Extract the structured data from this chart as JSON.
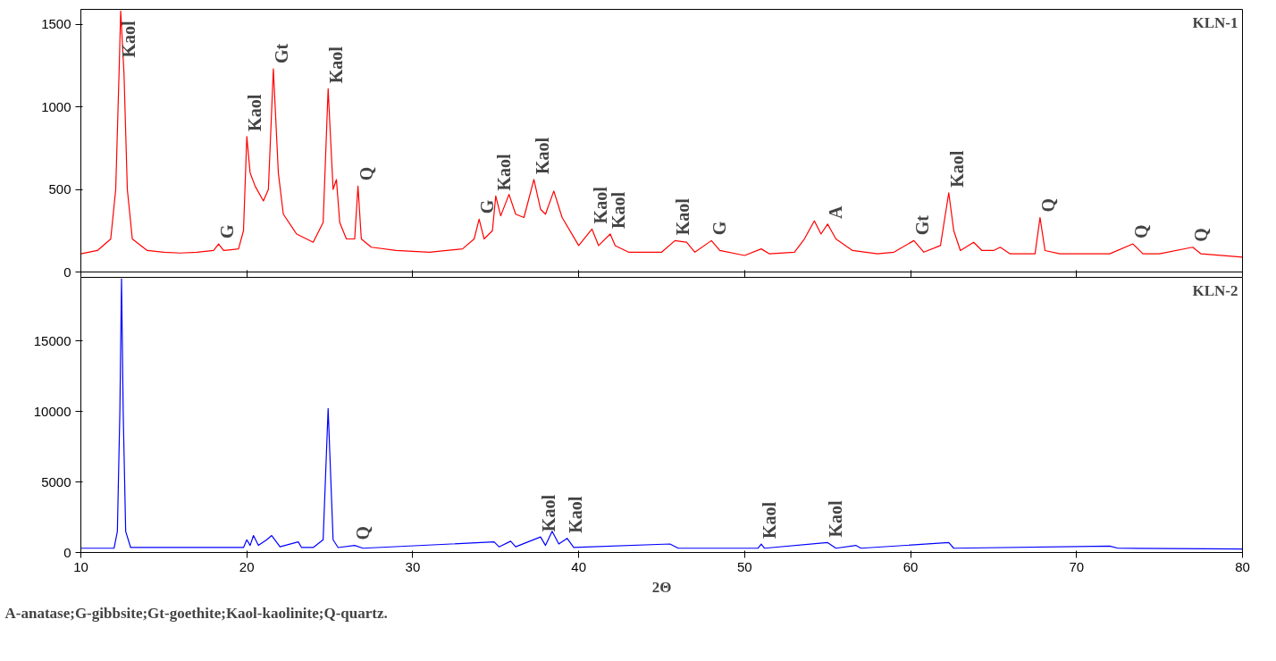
{
  "chart_data": [
    {
      "type": "line",
      "title": "KLN-1",
      "xlim": [
        10,
        80
      ],
      "xticks": [
        10,
        20,
        30,
        40,
        50,
        60,
        70,
        80
      ],
      "ylim": [
        0,
        1590
      ],
      "yticks": [
        0,
        500,
        1000,
        1500
      ],
      "tick_labels": "y",
      "grid": false,
      "series": [
        {
          "color": "#ff0000",
          "x": [
            10,
            11,
            11.8,
            12.1,
            12.3,
            12.4,
            12.6,
            12.8,
            13.1,
            14,
            15,
            16,
            17,
            18,
            18.3,
            18.6,
            19.5,
            19.8,
            20.0,
            20.2,
            20.5,
            21,
            21.3,
            21.6,
            21.9,
            22.2,
            23,
            24,
            24.6,
            24.9,
            25.2,
            25.4,
            25.6,
            26,
            26.5,
            26.7,
            26.9,
            27.5,
            29,
            31,
            33,
            33.7,
            34,
            34.3,
            34.8,
            35,
            35.3,
            35.8,
            36.2,
            36.7,
            37.3,
            37.7,
            38,
            38.5,
            39,
            40,
            40.8,
            41.2,
            41.9,
            42.2,
            43,
            45,
            45.8,
            46.5,
            47,
            48,
            48.5,
            50,
            51,
            51.5,
            53,
            53.6,
            54.2,
            54.6,
            55,
            55.5,
            56.5,
            58,
            59,
            60.2,
            60.8,
            61.8,
            62.3,
            62.6,
            63,
            63.8,
            64.3,
            65,
            65.4,
            66,
            67.5,
            67.8,
            68.1,
            69,
            72,
            73.4,
            74,
            75,
            77,
            77.5,
            80
          ],
          "values": [
            110,
            130,
            200,
            500,
            1200,
            1580,
            1200,
            500,
            200,
            130,
            120,
            115,
            120,
            130,
            170,
            130,
            140,
            250,
            820,
            600,
            520,
            430,
            500,
            1230,
            600,
            350,
            230,
            180,
            300,
            1110,
            500,
            560,
            300,
            200,
            200,
            520,
            200,
            150,
            130,
            120,
            140,
            200,
            320,
            200,
            250,
            460,
            340,
            470,
            350,
            330,
            560,
            380,
            350,
            490,
            330,
            160,
            260,
            160,
            230,
            160,
            120,
            120,
            190,
            180,
            120,
            190,
            130,
            100,
            140,
            110,
            120,
            200,
            310,
            230,
            290,
            200,
            130,
            110,
            120,
            190,
            120,
            160,
            480,
            250,
            130,
            180,
            130,
            130,
            150,
            110,
            110,
            330,
            130,
            110,
            110,
            170,
            110,
            110,
            150,
            110,
            90
          ]
        }
      ],
      "annotations": [
        {
          "text": "Kaol",
          "x": 12.4,
          "y": 1580
        },
        {
          "text": "G",
          "x": 18.3,
          "y": 170
        },
        {
          "text": "Kaol",
          "x": 20.0,
          "y": 820
        },
        {
          "text": "Gt",
          "x": 21.6,
          "y": 1230
        },
        {
          "text": "Kaol",
          "x": 24.9,
          "y": 1110
        },
        {
          "text": "Q",
          "x": 26.7,
          "y": 520
        },
        {
          "text": "G",
          "x": 34,
          "y": 320
        },
        {
          "text": "Kaol",
          "x": 35,
          "y": 460
        },
        {
          "text": "Kaol",
          "x": 37.3,
          "y": 560
        },
        {
          "text": "Kaol",
          "x": 40.8,
          "y": 260
        },
        {
          "text": "Kaol",
          "x": 41.9,
          "y": 230
        },
        {
          "text": "Kaol",
          "x": 45.8,
          "y": 190
        },
        {
          "text": "G",
          "x": 48,
          "y": 190
        },
        {
          "text": "A",
          "x": 55,
          "y": 290
        },
        {
          "text": "Gt",
          "x": 60.2,
          "y": 190
        },
        {
          "text": "Kaol",
          "x": 62.3,
          "y": 480
        },
        {
          "text": "Q",
          "x": 67.8,
          "y": 330
        },
        {
          "text": "Q",
          "x": 73.4,
          "y": 170
        },
        {
          "text": "Q",
          "x": 77,
          "y": 150
        }
      ]
    },
    {
      "type": "line",
      "title": "KLN-2",
      "xlabel": "2Θ",
      "xlim": [
        10,
        80
      ],
      "xticks": [
        10,
        20,
        30,
        40,
        50,
        60,
        70,
        80
      ],
      "ylim": [
        0,
        19500
      ],
      "yticks": [
        0,
        5000,
        10000,
        15000
      ],
      "grid": false,
      "series": [
        {
          "color": "#0000ff",
          "x": [
            10,
            12,
            12.2,
            12.35,
            12.45,
            12.55,
            12.7,
            13,
            19.8,
            20,
            20.2,
            20.4,
            20.7,
            21.2,
            21.5,
            22,
            23.1,
            23.3,
            24,
            24.6,
            24.9,
            25.2,
            25.5,
            26.5,
            27,
            34.9,
            35.2,
            35.9,
            36.2,
            37.7,
            38,
            38.4,
            38.8,
            39.3,
            39.7,
            45.5,
            46,
            50.8,
            51,
            51.2,
            55,
            55.5,
            56.7,
            57,
            62.3,
            62.6,
            72,
            72.5,
            80
          ],
          "values": [
            300,
            300,
            1500,
            10000,
            19400,
            10000,
            1500,
            350,
            350,
            900,
            500,
            1200,
            500,
            900,
            1200,
            400,
            750,
            350,
            350,
            900,
            10200,
            900,
            350,
            500,
            300,
            750,
            400,
            800,
            400,
            1100,
            500,
            1500,
            600,
            1000,
            350,
            600,
            300,
            300,
            600,
            300,
            700,
            300,
            500,
            300,
            700,
            300,
            450,
            300,
            250
          ]
        }
      ],
      "annotations": [
        {
          "text": "Q",
          "x": 26.5,
          "y": 500
        },
        {
          "text": "Kaol",
          "x": 37.7,
          "y": 1100
        },
        {
          "text": "Kaol",
          "x": 39.3,
          "y": 1000
        },
        {
          "text": "Kaol",
          "x": 51,
          "y": 600
        },
        {
          "text": "Kaol",
          "x": 55,
          "y": 700
        },
        "A-anatase;G-gibbsite;Gt-goethite;Kaol-kaolinite;Q-quartz."
      ]
    }
  ]
}
